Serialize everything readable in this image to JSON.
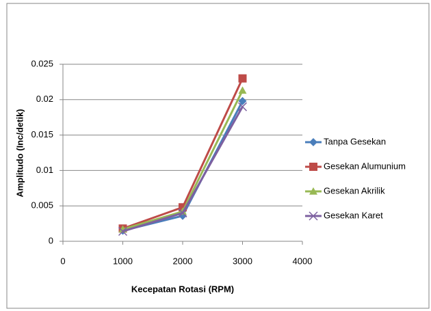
{
  "chart_data": {
    "type": "line",
    "x_label": "Kecepatan Rotasi (RPM)",
    "y_label": "Amplitudo (Inc/detik)",
    "x": [
      1000,
      2000,
      3000
    ],
    "series": [
      {
        "name": "Tanpa Gesekan",
        "color": "#4a7ebb",
        "marker": "diamond",
        "values": [
          0.0015,
          0.0036,
          0.0198
        ]
      },
      {
        "name": "Gesekan Alumunium",
        "color": "#be4b48",
        "marker": "square",
        "values": [
          0.0018,
          0.0048,
          0.023
        ]
      },
      {
        "name": "Gesekan Akrilik",
        "color": "#98b954",
        "marker": "triangle",
        "values": [
          0.0017,
          0.0042,
          0.0213
        ]
      },
      {
        "name": "Gesekan Karet",
        "color": "#7d60a0",
        "marker": "x",
        "values": [
          0.0014,
          0.004,
          0.019
        ]
      }
    ],
    "xlim": [
      0,
      4000
    ],
    "xticks": [
      0,
      1000,
      2000,
      3000,
      4000
    ],
    "ylim": [
      0,
      0.025
    ],
    "yticks": [
      0,
      0.005,
      0.01,
      0.015,
      0.02,
      0.025
    ],
    "grid": true,
    "legend": "right"
  }
}
